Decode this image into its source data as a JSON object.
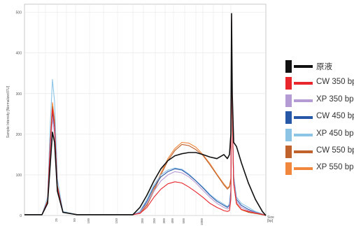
{
  "chart_data": {
    "type": "line",
    "ylabel": "Sample Intensity [Normalized FU]",
    "xlabel": "Size\n[bp]",
    "ylim": [
      0,
      520
    ],
    "yticks": [
      0,
      100,
      200,
      300,
      400,
      500
    ],
    "xticks": [
      "25",
      "50",
      "100",
      "150",
      "200",
      "250",
      "300",
      "400",
      "500",
      "1000"
    ],
    "grid": true,
    "legend_position": "right",
    "series": [
      {
        "name": "原液",
        "color": "#111111",
        "x": [
          35,
          60,
          68,
          72,
          75,
          78,
          82,
          90,
          110,
          190,
          200,
          210,
          220,
          230,
          240,
          250,
          260,
          270,
          280,
          290,
          300,
          310,
          315,
          320,
          325,
          328,
          330,
          331,
          332,
          334,
          338,
          345,
          355,
          365,
          375,
          380
        ],
        "y": [
          2,
          2,
          30,
          130,
          205,
          180,
          60,
          8,
          2,
          2,
          20,
          50,
          85,
          115,
          135,
          147,
          152,
          155,
          155,
          150,
          144,
          140,
          145,
          150,
          140,
          150,
          200,
          497,
          300,
          180,
          170,
          130,
          80,
          40,
          10,
          0
        ]
      },
      {
        "name": "CW 350 bp",
        "color": "#e8262b",
        "x": [
          35,
          60,
          68,
          72,
          75,
          78,
          82,
          90,
          110,
          190,
          200,
          210,
          220,
          230,
          240,
          250,
          260,
          270,
          280,
          290,
          300,
          310,
          320,
          325,
          328,
          330,
          331,
          332,
          334,
          338,
          345,
          355,
          365,
          375,
          380
        ],
        "y": [
          2,
          2,
          35,
          180,
          262,
          220,
          70,
          8,
          2,
          2,
          5,
          20,
          45,
          65,
          78,
          83,
          80,
          70,
          58,
          45,
          30,
          20,
          12,
          10,
          12,
          40,
          490,
          250,
          80,
          30,
          15,
          10,
          6,
          3,
          0
        ]
      },
      {
        "name": "XP 350 bp",
        "color": "#b49bd3",
        "x": [
          35,
          60,
          68,
          72,
          75,
          78,
          82,
          90,
          110,
          190,
          200,
          210,
          220,
          230,
          240,
          250,
          260,
          270,
          280,
          290,
          300,
          310,
          320,
          325,
          328,
          330,
          331,
          332,
          334,
          338,
          345,
          355,
          365,
          375,
          380
        ],
        "y": [
          2,
          2,
          30,
          160,
          240,
          200,
          65,
          8,
          2,
          2,
          8,
          30,
          60,
          85,
          100,
          108,
          105,
          95,
          80,
          62,
          45,
          30,
          20,
          16,
          20,
          50,
          470,
          240,
          90,
          35,
          20,
          12,
          7,
          3,
          0
        ]
      },
      {
        "name": "CW 450 bp",
        "color": "#2758a8",
        "x": [
          35,
          60,
          68,
          72,
          75,
          78,
          82,
          90,
          110,
          190,
          200,
          210,
          220,
          230,
          240,
          250,
          260,
          270,
          280,
          290,
          300,
          310,
          320,
          325,
          328,
          330,
          331,
          332,
          334,
          338,
          345,
          355,
          365,
          375,
          380
        ],
        "y": [
          2,
          2,
          35,
          175,
          255,
          215,
          70,
          8,
          2,
          2,
          8,
          35,
          70,
          95,
          108,
          115,
          112,
          100,
          85,
          68,
          50,
          35,
          25,
          20,
          25,
          60,
          480,
          250,
          90,
          40,
          25,
          15,
          8,
          3,
          0
        ]
      },
      {
        "name": "XP 450 bp",
        "color": "#8cc4e6",
        "x": [
          35,
          60,
          68,
          72,
          75,
          78,
          82,
          90,
          110,
          190,
          200,
          210,
          220,
          230,
          240,
          250,
          260,
          270,
          280,
          290,
          300,
          310,
          320,
          325,
          328,
          330,
          331,
          332,
          334,
          338,
          345,
          355,
          365,
          375,
          380
        ],
        "y": [
          2,
          2,
          45,
          230,
          335,
          280,
          90,
          10,
          2,
          2,
          10,
          40,
          75,
          100,
          112,
          117,
          114,
          102,
          86,
          70,
          52,
          38,
          28,
          22,
          28,
          65,
          470,
          250,
          100,
          45,
          30,
          20,
          10,
          4,
          0
        ]
      },
      {
        "name": "CW 550 bp",
        "color": "#c0622b",
        "x": [
          35,
          60,
          68,
          72,
          75,
          78,
          82,
          90,
          110,
          190,
          200,
          210,
          220,
          230,
          240,
          250,
          260,
          270,
          280,
          290,
          300,
          310,
          320,
          325,
          328,
          330,
          331,
          332,
          334,
          338,
          345,
          355,
          365,
          375,
          380
        ],
        "y": [
          2,
          2,
          35,
          180,
          268,
          225,
          72,
          8,
          2,
          2,
          6,
          25,
          60,
          100,
          135,
          160,
          175,
          172,
          162,
          148,
          125,
          100,
          75,
          65,
          70,
          90,
          480,
          240,
          80,
          30,
          15,
          8,
          5,
          2,
          0
        ]
      },
      {
        "name": "XP 550 bp",
        "color": "#f0873c",
        "x": [
          35,
          60,
          68,
          72,
          75,
          78,
          82,
          90,
          110,
          190,
          200,
          210,
          220,
          230,
          240,
          250,
          260,
          270,
          280,
          290,
          300,
          310,
          320,
          325,
          328,
          330,
          331,
          332,
          334,
          338,
          345,
          355,
          365,
          375,
          380
        ],
        "y": [
          2,
          2,
          38,
          190,
          278,
          235,
          75,
          8,
          2,
          2,
          7,
          28,
          65,
          105,
          140,
          165,
          180,
          178,
          168,
          150,
          128,
          102,
          78,
          68,
          72,
          92,
          470,
          235,
          78,
          28,
          14,
          8,
          5,
          2,
          0
        ]
      }
    ]
  },
  "legend": {
    "items": [
      {
        "label": "原液",
        "color": "#111111"
      },
      {
        "label": "CW 350 bp",
        "color": "#e8262b"
      },
      {
        "label": "XP 350 bp",
        "color": "#b49bd3"
      },
      {
        "label": "CW 450 bp",
        "color": "#2758a8"
      },
      {
        "label": "XP 450 bp",
        "color": "#8cc4e6"
      },
      {
        "label": "CW 550 bp",
        "color": "#c0622b"
      },
      {
        "label": "XP 550 bp",
        "color": "#f0873c"
      }
    ]
  }
}
